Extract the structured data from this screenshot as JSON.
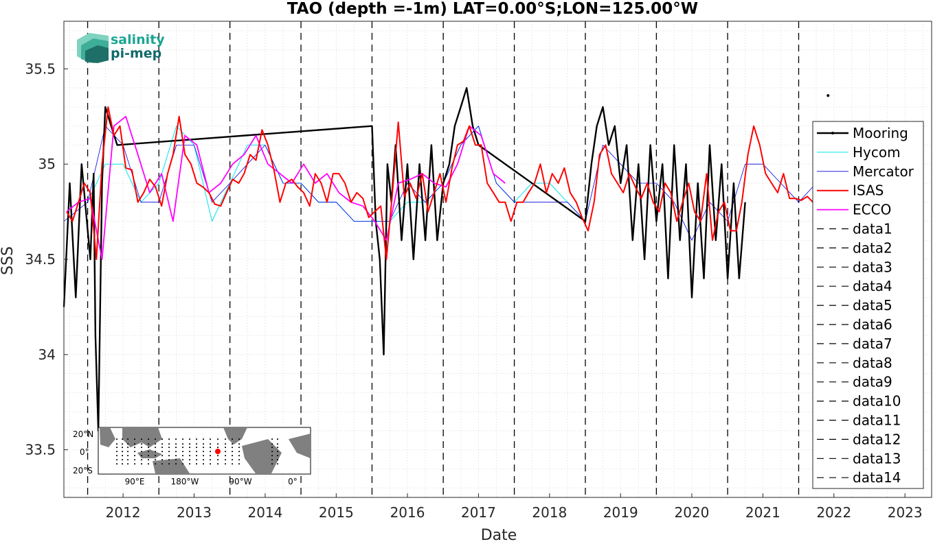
{
  "chart_data": {
    "type": "line",
    "title": "TAO (depth =-1m) LAT=0.00°S;LON=125.00°W",
    "xlabel": "Date",
    "ylabel": "SSS",
    "xlim": [
      "2011-09-01",
      "2023-11-15"
    ],
    "ylim": [
      33.25,
      35.75
    ],
    "grid": true,
    "legend_position": "right",
    "x_ticks": [
      "2012",
      "2013",
      "2014",
      "2015",
      "2016",
      "2017",
      "2018",
      "2019",
      "2020",
      "2021",
      "2022",
      "2023"
    ],
    "y_ticks": [
      "33.5",
      "34",
      "34.5",
      "35",
      "35.5"
    ],
    "vertical_lines": [
      "2012-01-01",
      "2013-01-01",
      "2014-01-01",
      "2015-01-01",
      "2016-01-01",
      "2017-01-01",
      "2018-01-01",
      "2019-01-01",
      "2020-01-01",
      "2021-01-01",
      "2022-01-01"
    ],
    "isolated_point": {
      "x": "2022-06-01",
      "y": 35.36
    },
    "series": [
      {
        "name": "Mooring",
        "color": "#000000",
        "width": 2.4,
        "style": "solid",
        "x": [
          "2011-09-01",
          "2011-10-01",
          "2011-11-01",
          "2011-12-01",
          "2012-01-15",
          "2012-02-01",
          "2012-02-10",
          "2012-02-25",
          "2012-03-15",
          "2012-04-01",
          "2012-05-01",
          "2012-06-01",
          "2016-01-01",
          "2016-01-20",
          "2016-02-10",
          "2016-03-01",
          "2016-03-20",
          "2016-04-10",
          "2016-05-01",
          "2016-06-01",
          "2016-07-01",
          "2016-08-01",
          "2016-09-01",
          "2016-10-01",
          "2016-11-01",
          "2016-12-01",
          "2017-01-01",
          "2017-02-01",
          "2017-03-01",
          "2017-04-01",
          "2017-05-01",
          "2017-06-01",
          "2017-07-01",
          "2019-01-01",
          "2019-02-01",
          "2019-03-01",
          "2019-04-01",
          "2019-05-01",
          "2019-06-01",
          "2019-07-01",
          "2019-08-01",
          "2019-09-01",
          "2019-10-01",
          "2019-11-01",
          "2019-12-01",
          "2020-01-01",
          "2020-02-01",
          "2020-03-01",
          "2020-04-01",
          "2020-05-01",
          "2020-06-01",
          "2020-07-01",
          "2020-08-01",
          "2020-09-01",
          "2020-10-01",
          "2020-11-01",
          "2020-12-01",
          "2021-01-01",
          "2021-02-01",
          "2021-03-01",
          "2021-04-01"
        ],
        "y": [
          34.25,
          34.9,
          34.3,
          35.0,
          34.5,
          34.95,
          34.1,
          33.6,
          34.9,
          35.3,
          35.2,
          35.1,
          35.2,
          34.7,
          34.5,
          34.0,
          35.0,
          34.8,
          35.1,
          34.6,
          35.0,
          34.5,
          35.0,
          34.6,
          35.1,
          34.6,
          34.9,
          35.0,
          35.2,
          35.3,
          35.4,
          35.2,
          35.1,
          34.7,
          35.0,
          35.2,
          35.3,
          35.1,
          35.2,
          34.9,
          35.1,
          34.6,
          35.0,
          34.5,
          35.1,
          34.7,
          35.0,
          34.4,
          35.1,
          34.6,
          35.0,
          34.3,
          34.9,
          34.4,
          35.1,
          34.6,
          35.0,
          34.4,
          34.9,
          34.4,
          34.8
        ]
      },
      {
        "name": "Hycom",
        "color": "#00e5ee",
        "width": 1.0,
        "style": "solid",
        "x": [
          "2012-01-01",
          "2012-04-01",
          "2012-07-01",
          "2012-10-01",
          "2013-01-01",
          "2013-04-01",
          "2013-07-01",
          "2013-10-01",
          "2014-01-01",
          "2014-04-01",
          "2014-07-01",
          "2014-10-01",
          "2015-01-01",
          "2015-04-01",
          "2015-07-01",
          "2015-10-01",
          "2016-01-01",
          "2016-04-01",
          "2016-07-01",
          "2016-10-01",
          "2017-01-01",
          "2017-04-01",
          "2017-07-01",
          "2017-10-01",
          "2018-01-01",
          "2018-04-01",
          "2018-07-01",
          "2018-10-01",
          "2019-01-01"
        ],
        "y": [
          34.8,
          35.0,
          35.0,
          34.8,
          34.9,
          35.2,
          35.1,
          34.7,
          34.9,
          35.1,
          35.1,
          34.9,
          34.9,
          34.8,
          34.8,
          34.7,
          34.7,
          34.7,
          34.8,
          34.8,
          34.9,
          35.1,
          35.2,
          34.9,
          34.8,
          34.9,
          34.9,
          34.8,
          34.7
        ]
      },
      {
        "name": "Mercator",
        "color": "#0000dd",
        "width": 0.8,
        "style": "solid",
        "x": [
          "2011-09-01",
          "2012-01-01",
          "2012-04-01",
          "2012-07-01",
          "2012-10-01",
          "2013-01-01",
          "2013-04-01",
          "2013-07-01",
          "2013-10-01",
          "2014-01-01",
          "2014-04-01",
          "2014-07-01",
          "2014-10-01",
          "2015-01-01",
          "2015-04-01",
          "2015-07-01",
          "2015-10-01",
          "2016-01-01",
          "2016-04-01",
          "2016-07-01",
          "2016-10-01",
          "2017-01-01",
          "2017-04-01",
          "2017-07-01",
          "2017-10-01",
          "2018-01-01",
          "2018-04-01",
          "2018-07-01",
          "2018-10-01",
          "2019-01-01",
          "2019-04-01",
          "2019-07-01",
          "2019-10-01",
          "2020-01-01",
          "2020-04-01",
          "2020-07-01",
          "2020-10-01",
          "2021-01-01",
          "2021-04-01",
          "2021-07-01",
          "2021-10-01",
          "2022-01-01",
          "2022-04-01",
          "2022-07-01",
          "2022-10-01",
          "2023-01-01",
          "2023-04-01",
          "2023-07-01",
          "2023-10-01"
        ],
        "y": [
          34.7,
          34.8,
          35.2,
          35.1,
          34.8,
          34.8,
          35.1,
          35.1,
          34.8,
          34.9,
          35.0,
          35.1,
          34.9,
          34.9,
          34.8,
          34.8,
          34.7,
          34.7,
          34.7,
          34.9,
          34.8,
          34.9,
          35.1,
          35.2,
          34.9,
          34.8,
          34.8,
          34.8,
          34.8,
          34.7,
          35.1,
          35.0,
          34.9,
          34.9,
          34.8,
          34.6,
          34.8,
          34.7,
          35.0,
          35.0,
          34.9,
          34.8,
          34.9,
          35.0,
          34.8,
          34.9,
          34.9,
          35.0,
          34.8
        ]
      },
      {
        "name": "ISAS",
        "color": "#ff0000",
        "width": 2.0,
        "style": "solid",
        "x": [
          "2011-09-15",
          "2011-10-15",
          "2011-11-15",
          "2011-12-15",
          "2012-01-15",
          "2012-02-15",
          "2012-03-15",
          "2012-04-15",
          "2012-05-15",
          "2012-06-15",
          "2012-07-15",
          "2012-08-15",
          "2012-09-15",
          "2012-10-15",
          "2012-11-15",
          "2012-12-15",
          "2013-01-15",
          "2013-02-15",
          "2013-03-15",
          "2013-04-15",
          "2013-05-15",
          "2013-06-15",
          "2013-07-15",
          "2013-08-15",
          "2013-09-15",
          "2013-10-15",
          "2013-11-15",
          "2013-12-15",
          "2014-01-15",
          "2014-02-15",
          "2014-03-15",
          "2014-04-15",
          "2014-05-15",
          "2014-06-15",
          "2014-07-15",
          "2014-08-15",
          "2014-09-15",
          "2014-10-15",
          "2014-11-15",
          "2014-12-15",
          "2015-01-15",
          "2015-02-15",
          "2015-03-15",
          "2015-04-15",
          "2015-05-15",
          "2015-06-15",
          "2015-07-15",
          "2015-08-15",
          "2015-09-15",
          "2015-10-15",
          "2015-11-15",
          "2015-12-15",
          "2016-01-15",
          "2016-02-15",
          "2016-03-15",
          "2016-04-15",
          "2016-05-15",
          "2016-06-15",
          "2016-07-15",
          "2016-08-15",
          "2016-09-15",
          "2016-10-15",
          "2016-11-15",
          "2016-12-15",
          "2017-01-15",
          "2017-02-15",
          "2017-03-15",
          "2017-04-15",
          "2017-05-15",
          "2017-06-15",
          "2017-07-15",
          "2017-08-15",
          "2017-09-15",
          "2017-10-15",
          "2017-11-15",
          "2017-12-15",
          "2018-01-15",
          "2018-02-15",
          "2018-03-15",
          "2018-04-15",
          "2018-05-15",
          "2018-06-15",
          "2018-07-15",
          "2018-08-15",
          "2018-09-15",
          "2018-10-15",
          "2018-11-15",
          "2018-12-15",
          "2019-01-15",
          "2019-02-15",
          "2019-03-15",
          "2019-04-15",
          "2019-05-15",
          "2019-06-15",
          "2019-07-15",
          "2019-08-15",
          "2019-09-15",
          "2019-10-15",
          "2019-11-15",
          "2019-12-15",
          "2020-01-15",
          "2020-02-15",
          "2020-03-15",
          "2020-04-15",
          "2020-05-15",
          "2020-06-15",
          "2020-07-15",
          "2020-08-15",
          "2020-09-15",
          "2020-10-15",
          "2020-11-15",
          "2020-12-15",
          "2021-01-15",
          "2021-02-15",
          "2021-03-15",
          "2021-04-15",
          "2021-05-15",
          "2021-06-15",
          "2021-07-15",
          "2021-08-15",
          "2021-09-15",
          "2021-10-15",
          "2021-11-15",
          "2021-12-15",
          "2022-01-15",
          "2022-02-15",
          "2022-03-15"
        ],
        "y": [
          34.75,
          34.7,
          34.8,
          34.9,
          34.85,
          34.5,
          35.0,
          35.3,
          35.15,
          35.2,
          34.98,
          34.97,
          34.8,
          34.85,
          34.92,
          34.88,
          34.78,
          34.95,
          35.05,
          35.25,
          35.05,
          35.0,
          34.9,
          34.88,
          34.85,
          34.79,
          34.78,
          34.85,
          34.92,
          34.9,
          34.95,
          35.05,
          35.02,
          35.18,
          35.1,
          34.97,
          34.8,
          34.9,
          34.92,
          34.88,
          34.85,
          34.78,
          34.95,
          34.9,
          34.8,
          34.95,
          34.95,
          34.9,
          34.8,
          34.85,
          34.82,
          34.72,
          34.75,
          34.78,
          34.5,
          34.85,
          35.22,
          34.83,
          34.9,
          34.82,
          34.95,
          34.75,
          34.85,
          34.95,
          34.8,
          34.98,
          35.1,
          35.12,
          35.2,
          35.1,
          35.1,
          34.9,
          34.85,
          34.8,
          34.8,
          34.7,
          34.8,
          34.8,
          34.85,
          34.9,
          35.0,
          34.85,
          34.95,
          34.9,
          34.98,
          34.85,
          34.8,
          34.72,
          34.65,
          34.8,
          35.05,
          35.1,
          34.95,
          34.9,
          34.85,
          34.95,
          34.88,
          34.82,
          34.9,
          34.8,
          34.75,
          34.9,
          34.85,
          34.7,
          34.8,
          34.9,
          34.75,
          34.7,
          34.95,
          34.6,
          34.75,
          34.8,
          34.65,
          34.65,
          34.8,
          35.05,
          35.2,
          35.1,
          34.95,
          34.9,
          34.85,
          34.95,
          34.82,
          34.82,
          34.81,
          34.83,
          34.8
        ]
      },
      {
        "name": "ECCO",
        "color": "#ff00ff",
        "width": 1.8,
        "style": "solid",
        "x": [
          "2011-09-15",
          "2011-11-15",
          "2012-01-15",
          "2012-03-15",
          "2012-05-15",
          "2012-07-15",
          "2012-09-15",
          "2012-11-15",
          "2013-01-15",
          "2013-03-15",
          "2013-05-15",
          "2013-07-15",
          "2013-09-15",
          "2013-11-15",
          "2014-01-15",
          "2014-03-15",
          "2014-05-15",
          "2014-07-15",
          "2014-09-15",
          "2014-11-15",
          "2015-01-15",
          "2015-03-15",
          "2015-05-15",
          "2015-07-15",
          "2015-09-15",
          "2015-11-15",
          "2016-01-15",
          "2016-03-15",
          "2016-05-15",
          "2016-07-15",
          "2016-09-15",
          "2016-11-15",
          "2017-01-15",
          "2017-03-15",
          "2017-05-15",
          "2017-07-15",
          "2017-09-15",
          "2017-11-15"
        ],
        "y": [
          34.75,
          34.8,
          34.82,
          34.5,
          35.2,
          35.25,
          35.05,
          34.85,
          34.95,
          34.7,
          35.15,
          35.1,
          34.85,
          34.9,
          35.0,
          35.05,
          35.15,
          35.0,
          34.95,
          34.9,
          35.0,
          34.9,
          34.95,
          34.85,
          34.8,
          34.78,
          34.7,
          34.6,
          34.9,
          34.92,
          34.95,
          34.9,
          34.88,
          35.0,
          35.2,
          35.15,
          34.95,
          34.9
        ]
      },
      {
        "name": "data1",
        "color": "#000000",
        "style": "dashed"
      },
      {
        "name": "data2",
        "color": "#000000",
        "style": "dashed"
      },
      {
        "name": "data3",
        "color": "#000000",
        "style": "dashed"
      },
      {
        "name": "data4",
        "color": "#000000",
        "style": "dashed"
      },
      {
        "name": "data5",
        "color": "#000000",
        "style": "dashed"
      },
      {
        "name": "data6",
        "color": "#000000",
        "style": "dashed"
      },
      {
        "name": "data7",
        "color": "#000000",
        "style": "dashed"
      },
      {
        "name": "data8",
        "color": "#000000",
        "style": "dashed"
      },
      {
        "name": "data9",
        "color": "#000000",
        "style": "dashed"
      },
      {
        "name": "data10",
        "color": "#000000",
        "style": "dashed"
      },
      {
        "name": "data11",
        "color": "#000000",
        "style": "dashed"
      },
      {
        "name": "data12",
        "color": "#000000",
        "style": "dashed"
      },
      {
        "name": "data13",
        "color": "#000000",
        "style": "dashed"
      },
      {
        "name": "data14",
        "color": "#000000",
        "style": "dashed"
      }
    ]
  },
  "logo": {
    "line1": "salinity",
    "line2": "pi-mep"
  },
  "inset_map": {
    "y_labels": [
      "20°N",
      "0°",
      "20°S"
    ],
    "x_labels": [
      "90°E",
      "180°W",
      "90°W",
      "0°"
    ],
    "land_color": "#808080",
    "station_color": "#ff0000"
  }
}
